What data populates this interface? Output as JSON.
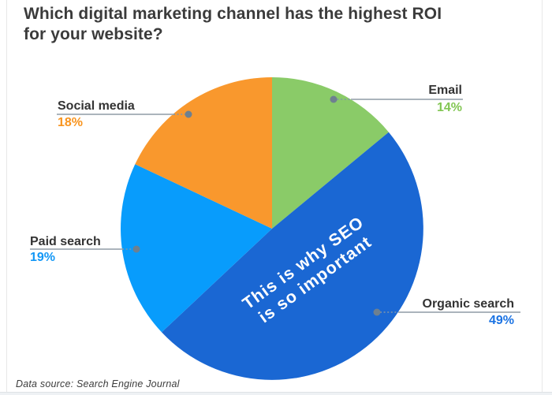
{
  "card": {
    "title_lines": [
      "Which digital marketing channel has the highest ROI",
      "for your website?"
    ],
    "source": "Data source: Search Engine Journal"
  },
  "chart_data": {
    "type": "pie",
    "title": "Which digital marketing channel has the highest ROI for your website?",
    "unit": "%",
    "order": "clockwise from 12 o'clock",
    "legend_position": "callout labels with leader lines",
    "slices": [
      {
        "label": "Email",
        "value": 14,
        "pct_label": "14%",
        "color": "#8ACB68",
        "pct_color": "#82C653"
      },
      {
        "label": "Organic search",
        "value": 49,
        "pct_label": "49%",
        "color": "#1A67D3",
        "pct_color": "#1B73E3"
      },
      {
        "label": "Paid search",
        "value": 19,
        "pct_label": "19%",
        "color": "#089CFC",
        "pct_color": "#1297F6"
      },
      {
        "label": "Social media",
        "value": 18,
        "pct_label": "18%",
        "color": "#F9982D",
        "pct_color": "#F8941E"
      }
    ],
    "annotation": {
      "text": "This is why SEO is so important",
      "lines": [
        "This is why SEO",
        "is so important"
      ],
      "color": "#FFFFFF",
      "rotation_deg": -36,
      "on_slice": "Organic search"
    },
    "colors": {
      "leader_line": "#9FAAB3",
      "leader_dotted": "#7E96AC",
      "leader_dot": "#6E8090",
      "title_text": "#3B3B3B",
      "label_text": "#333333"
    },
    "source": "Data source: Search Engine Journal"
  }
}
